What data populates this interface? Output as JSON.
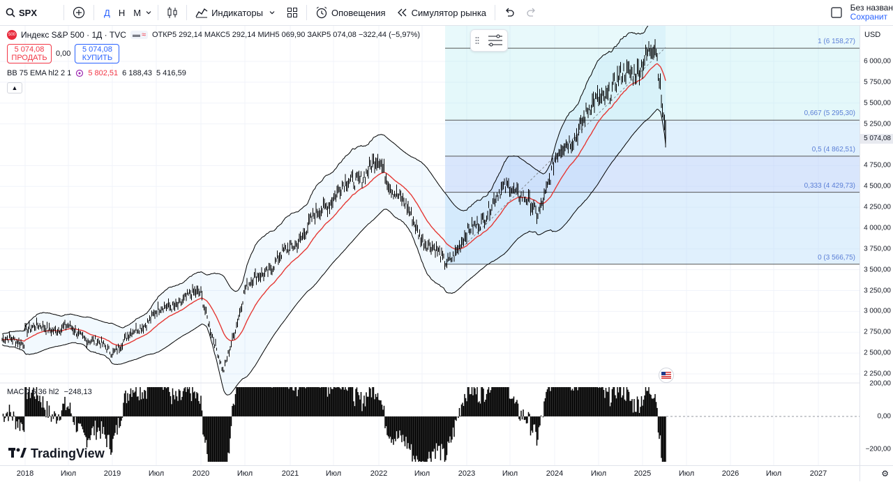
{
  "toolbar": {
    "symbol": "SPX",
    "timeframes": [
      "Д",
      "Н",
      "М"
    ],
    "indicators_label": "Индикаторы",
    "alerts_label": "Оповещения",
    "replay_label": "Симулятор рынка",
    "save_title": "Без назван",
    "save_sub": "Сохранит"
  },
  "legend": {
    "symbol_badge": "500",
    "title": "Индекс S&P 500 · 1Д · TVC",
    "ohlc": "ОТКР5 292,14  МАКС5 292,14  МИН5 069,90  ЗАКР5 074,08  −322,44 (−5,97%)"
  },
  "trade": {
    "sell_price": "5 074,08",
    "sell_label": "ПРОДАТЬ",
    "spread": "0,00",
    "buy_price": "5 074,08",
    "buy_label": "КУПИТЬ"
  },
  "indicator": {
    "name": "BB 75 EMA hl2 2 1",
    "v1": "5 802,51",
    "v2": "6 188,43",
    "v3": "5 416,59"
  },
  "macd": {
    "name": "MACD 6 36 hl2",
    "value": "−248,13",
    "axis": [
      "200,00",
      "0,00",
      "−200,00"
    ]
  },
  "currency": "USD",
  "price_axis": [
    "6 000,00",
    "5 750,00",
    "5 500,00",
    "5 250,00",
    "4 750,00",
    "4 500,00",
    "4 250,00",
    "4 000,00",
    "3 750,00",
    "3 500,00",
    "3 250,00",
    "3 000,00",
    "2 750,00",
    "2 500,00",
    "2 250,00"
  ],
  "last_price": "5 074,08",
  "fib_levels": [
    {
      "label": "1 (6 158,27)",
      "value": 6158.27
    },
    {
      "label": "0,667 (5 295,30)",
      "value": 5295.3
    },
    {
      "label": "0,5 (4 862,51)",
      "value": 4862.51
    },
    {
      "label": "0,333 (4 429,73)",
      "value": 4429.73
    },
    {
      "label": "0 (3 566,75)",
      "value": 3566.75
    }
  ],
  "time_axis": [
    "2018",
    "Июл",
    "2019",
    "Июл",
    "2020",
    "Июл",
    "2021",
    "Июл",
    "2022",
    "Июл",
    "2023",
    "Июл",
    "2024",
    "Июл",
    "2025",
    "Июл",
    "2026",
    "Июл",
    "2027"
  ],
  "brand": "TradingView",
  "chart_data": {
    "type": "line",
    "title": "Индекс S&P 500 · 1Д · TVC",
    "x": [
      "2018-01",
      "2018-07",
      "2019-01",
      "2019-07",
      "2020-01",
      "2020-03",
      "2020-07",
      "2021-01",
      "2021-07",
      "2022-01",
      "2022-07",
      "2022-10",
      "2023-01",
      "2023-07",
      "2023-10",
      "2024-01",
      "2024-07",
      "2025-01",
      "2025-02",
      "2025-04"
    ],
    "series": [
      {
        "name": "",
        "values": [
          2800,
          2800,
          2520,
          2990,
          3230,
          2240,
          3270,
          3750,
          4400,
          4790,
          3900,
          3580,
          3900,
          4550,
          4150,
          4800,
          5550,
          6000,
          6140,
          5074
        ]
      }
    ],
    "ylim": [
      2250,
      6250
    ],
    "grid": true
  }
}
